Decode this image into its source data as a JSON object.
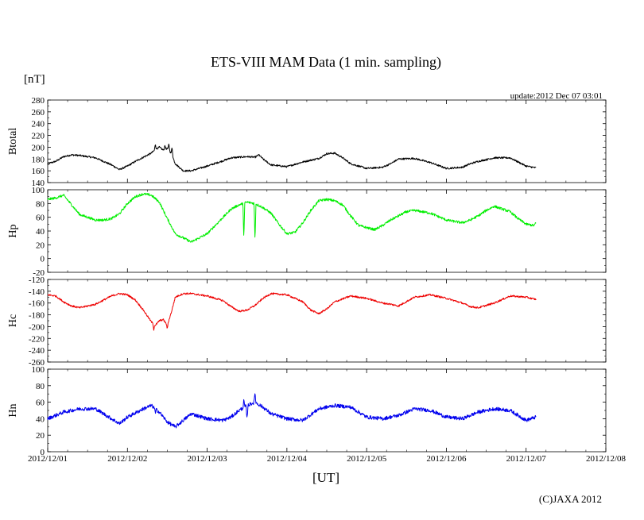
{
  "title": "ETS-VIII MAM Data (1 min. sampling)",
  "unit_label": "[nT]",
  "update_text": "update:2012 Dec 07 03:01",
  "xlabel": "[UT]",
  "copyright": "(C)JAXA 2012",
  "x_ticks": [
    "2012/12/01",
    "2012/12/02",
    "2012/12/03",
    "2012/12/04",
    "2012/12/05",
    "2012/12/06",
    "2012/12/07",
    "2012/12/08"
  ],
  "chart_data": {
    "type": "line",
    "x_unit": "days since 2012/12/01 00:00 UT",
    "xlim": [
      0,
      7
    ],
    "data_end": 6.125,
    "grid": false,
    "panels": [
      {
        "name": "Btotal",
        "color": "#000000",
        "ylim": [
          140,
          280
        ],
        "yticks": [
          140,
          160,
          180,
          200,
          220,
          240,
          260,
          280
        ],
        "noise": 1.5,
        "x": [
          0,
          0.1,
          0.2,
          0.3,
          0.4,
          0.6,
          0.8,
          0.9,
          1.0,
          1.1,
          1.2,
          1.3,
          1.35,
          1.4,
          1.45,
          1.5,
          1.55,
          1.6,
          1.7,
          1.8,
          2.0,
          2.2,
          2.3,
          2.5,
          2.6,
          2.65,
          2.7,
          2.8,
          3.0,
          3.2,
          3.3,
          3.4,
          3.5,
          3.6,
          3.7,
          3.8,
          4.0,
          4.2,
          4.3,
          4.4,
          4.6,
          4.8,
          5.0,
          5.2,
          5.3,
          5.4,
          5.6,
          5.8,
          6.0,
          6.125
        ],
        "y": [
          172,
          176,
          184,
          187,
          186,
          182,
          170,
          162,
          168,
          176,
          183,
          190,
          196,
          200,
          195,
          198,
          190,
          172,
          160,
          160,
          168,
          177,
          182,
          184,
          183,
          187,
          180,
          170,
          167,
          175,
          178,
          181,
          189,
          190,
          182,
          172,
          164,
          166,
          172,
          180,
          181,
          174,
          164,
          166,
          172,
          176,
          182,
          182,
          168,
          165
        ],
        "spikes": [
          [
            1.35,
            206
          ],
          [
            1.47,
            204
          ],
          [
            1.52,
            206
          ],
          [
            1.56,
            200
          ]
        ]
      },
      {
        "name": "Hp",
        "color": "#00ee00",
        "ylim": [
          -20,
          100
        ],
        "yticks": [
          -20,
          0,
          20,
          40,
          60,
          80,
          100
        ],
        "noise": 1.8,
        "x": [
          0,
          0.1,
          0.2,
          0.4,
          0.6,
          0.7,
          0.8,
          0.9,
          1.0,
          1.1,
          1.2,
          1.3,
          1.4,
          1.5,
          1.6,
          1.7,
          1.8,
          2.0,
          2.1,
          2.2,
          2.3,
          2.4,
          2.5,
          2.6,
          2.7,
          2.8,
          2.9,
          3.0,
          3.1,
          3.2,
          3.3,
          3.4,
          3.5,
          3.6,
          3.7,
          3.8,
          3.9,
          4.1,
          4.2,
          4.3,
          4.5,
          4.6,
          4.8,
          5.0,
          5.2,
          5.3,
          5.4,
          5.5,
          5.6,
          5.8,
          5.9,
          6.0,
          6.1,
          6.125
        ],
        "y": [
          86,
          88,
          92,
          64,
          56,
          56,
          58,
          65,
          80,
          90,
          94,
          92,
          82,
          58,
          36,
          30,
          24,
          36,
          48,
          60,
          72,
          78,
          82,
          80,
          74,
          66,
          50,
          36,
          38,
          52,
          70,
          84,
          86,
          84,
          78,
          62,
          48,
          42,
          48,
          56,
          68,
          70,
          66,
          56,
          52,
          56,
          62,
          70,
          76,
          68,
          58,
          50,
          48,
          52
        ],
        "spikes": [
          [
            2.46,
            30
          ],
          [
            2.6,
            26
          ]
        ]
      },
      {
        "name": "Hc",
        "color": "#ee0000",
        "ylim": [
          -260,
          -120
        ],
        "yticks": [
          -260,
          -240,
          -220,
          -200,
          -180,
          -160,
          -140,
          -120
        ],
        "noise": 1.5,
        "x": [
          0,
          0.1,
          0.2,
          0.3,
          0.4,
          0.6,
          0.8,
          0.9,
          1.0,
          1.1,
          1.2,
          1.3,
          1.35,
          1.4,
          1.45,
          1.5,
          1.55,
          1.6,
          1.7,
          1.8,
          2.0,
          2.2,
          2.3,
          2.4,
          2.5,
          2.6,
          2.7,
          2.8,
          3.0,
          3.2,
          3.3,
          3.4,
          3.5,
          3.6,
          3.8,
          4.0,
          4.2,
          4.3,
          4.4,
          4.6,
          4.8,
          5.0,
          5.2,
          5.3,
          5.4,
          5.6,
          5.8,
          6.0,
          6.125
        ],
        "y": [
          -146,
          -148,
          -158,
          -165,
          -168,
          -162,
          -148,
          -144,
          -146,
          -155,
          -172,
          -192,
          -198,
          -190,
          -188,
          -198,
          -176,
          -150,
          -144,
          -144,
          -148,
          -156,
          -166,
          -174,
          -172,
          -164,
          -152,
          -144,
          -146,
          -158,
          -172,
          -178,
          -170,
          -158,
          -148,
          -152,
          -160,
          -162,
          -165,
          -150,
          -146,
          -152,
          -160,
          -166,
          -168,
          -160,
          -148,
          -150,
          -154
        ],
        "spikes": [
          [
            1.33,
            -205
          ],
          [
            1.5,
            -204
          ]
        ]
      },
      {
        "name": "Hn",
        "color": "#0000ee",
        "ylim": [
          0,
          100
        ],
        "yticks": [
          0,
          20,
          40,
          60,
          80,
          100
        ],
        "noise": 2.2,
        "x": [
          0,
          0.2,
          0.4,
          0.6,
          0.7,
          0.8,
          0.9,
          1.0,
          1.2,
          1.3,
          1.4,
          1.5,
          1.6,
          1.7,
          1.8,
          2.0,
          2.2,
          2.3,
          2.4,
          2.5,
          2.6,
          2.7,
          2.8,
          3.0,
          3.2,
          3.4,
          3.6,
          3.8,
          4.0,
          4.2,
          4.4,
          4.6,
          4.8,
          5.0,
          5.2,
          5.4,
          5.6,
          5.8,
          6.0,
          6.125
        ],
        "y": [
          40,
          48,
          52,
          52,
          46,
          40,
          34,
          42,
          52,
          56,
          48,
          36,
          30,
          38,
          46,
          40,
          38,
          42,
          50,
          56,
          60,
          54,
          46,
          40,
          38,
          52,
          56,
          54,
          42,
          40,
          44,
          52,
          50,
          42,
          40,
          48,
          52,
          50,
          38,
          42
        ],
        "spikes": [
          [
            1.35,
            46
          ],
          [
            2.46,
            62
          ],
          [
            2.5,
            38
          ],
          [
            2.6,
            72
          ]
        ]
      }
    ]
  }
}
